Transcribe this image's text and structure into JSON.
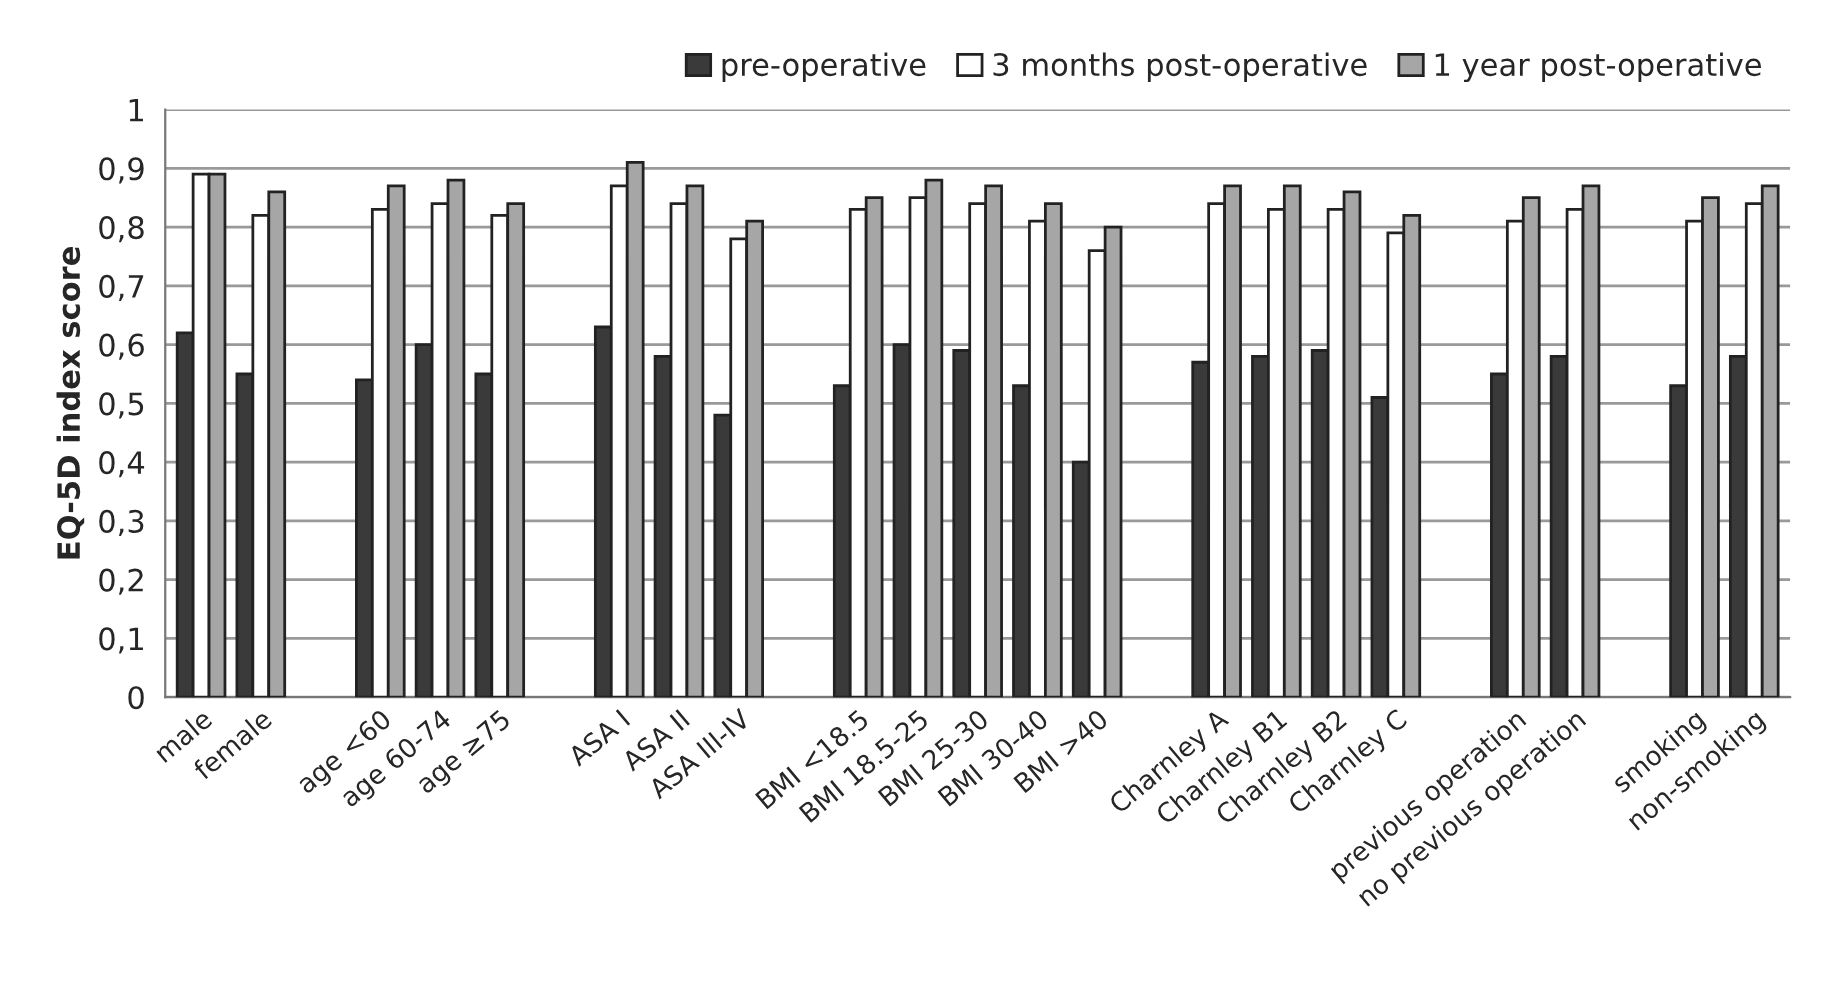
{
  "chart_data": {
    "type": "bar",
    "ylabel": "EQ-5D index score",
    "categories": [
      "male",
      "female",
      null,
      "age <60",
      "age 60-74",
      "age ≥75",
      null,
      "ASA I",
      "ASA II",
      "ASA III-IV",
      null,
      "BMI <18.5",
      "BMI 18.5-25",
      "BMI 25-30",
      "BMI 30-40",
      "BMI >40",
      null,
      "Charnley A",
      "Charnley B1",
      "Charnley B2",
      "Charnley C",
      null,
      "previous operation",
      "no previous operation",
      null,
      "smoking",
      "non-smoking"
    ],
    "series": [
      {
        "name": "pre-operative",
        "color": "#3a3a3a",
        "values": [
          0.62,
          0.55,
          null,
          0.54,
          0.6,
          0.55,
          null,
          0.63,
          0.58,
          0.48,
          null,
          0.53,
          0.6,
          0.59,
          0.53,
          0.4,
          null,
          0.57,
          0.58,
          0.59,
          0.51,
          null,
          0.55,
          0.58,
          null,
          0.53,
          0.58
        ]
      },
      {
        "name": "3 months post-operative",
        "color": "#ffffff",
        "values": [
          0.89,
          0.82,
          null,
          0.83,
          0.84,
          0.82,
          null,
          0.87,
          0.84,
          0.78,
          null,
          0.83,
          0.85,
          0.84,
          0.81,
          0.76,
          null,
          0.84,
          0.83,
          0.83,
          0.79,
          null,
          0.81,
          0.83,
          null,
          0.81,
          0.84
        ]
      },
      {
        "name": "1 year post-operative",
        "color": "#a6a6a6",
        "values": [
          0.89,
          0.86,
          null,
          0.87,
          0.88,
          0.84,
          null,
          0.91,
          0.87,
          0.81,
          null,
          0.85,
          0.88,
          0.87,
          0.84,
          0.8,
          null,
          0.87,
          0.87,
          0.86,
          0.82,
          null,
          0.85,
          0.87,
          null,
          0.85,
          0.87
        ]
      }
    ],
    "ylim": [
      0,
      1
    ],
    "yticks": [
      0,
      {
        "value": 0.1,
        "label": "0,1"
      },
      {
        "value": 0.2,
        "label": "0,2"
      },
      {
        "value": 0.3,
        "label": "0,3"
      },
      {
        "value": 0.4,
        "label": "0,4"
      },
      {
        "value": 0.5,
        "label": "0,5"
      },
      {
        "value": 0.6,
        "label": "0,6"
      },
      {
        "value": 0.7,
        "label": "0,7"
      },
      {
        "value": 0.8,
        "label": "0,8"
      },
      {
        "value": 0.9,
        "label": "0,9"
      },
      1
    ],
    "grid": "y",
    "legend": "top right"
  }
}
